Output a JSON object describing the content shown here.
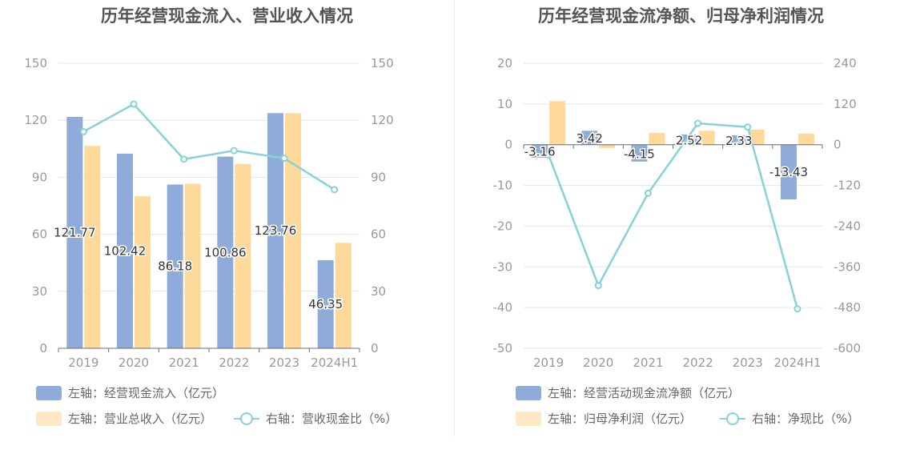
{
  "chart_data": [
    {
      "type": "bar",
      "title": "历年经营现金流入、营业收入情况",
      "categories": [
        "2019",
        "2020",
        "2021",
        "2022",
        "2023",
        "2024H1"
      ],
      "series": [
        {
          "name": "左轴：经营现金流入（亿元）",
          "axis": "left",
          "values": [
            121.77,
            102.42,
            86.18,
            100.86,
            123.76,
            46.35
          ],
          "labels": [
            "121.77",
            "102.42",
            "86.18",
            "100.86",
            "123.76",
            "46.35"
          ]
        },
        {
          "name": "左轴：营业总收入（亿元）",
          "axis": "left",
          "values": [
            106.5,
            80,
            86.6,
            97,
            123.7,
            55.5
          ]
        },
        {
          "name": "右轴：营收现金比（%）",
          "axis": "right",
          "type": "line",
          "values": [
            114,
            128.5,
            99.5,
            104,
            100,
            83.5
          ]
        }
      ],
      "left_ylim": [
        0,
        150
      ],
      "right_ylim": [
        0,
        150
      ],
      "left_ticks": [
        "0",
        "30",
        "60",
        "90",
        "120",
        "150"
      ],
      "right_ticks": [
        "0",
        "30",
        "60",
        "90",
        "120",
        "150"
      ]
    },
    {
      "type": "bar",
      "title": "历年经营现金流净额、归母净利润情况",
      "categories": [
        "2019",
        "2020",
        "2021",
        "2022",
        "2023",
        "2024H1"
      ],
      "series": [
        {
          "name": "左轴：经营活动现金流净额（亿元）",
          "axis": "left",
          "values": [
            -3.16,
            3.42,
            -4.15,
            2.52,
            2.33,
            -13.43
          ],
          "labels": [
            "-3.16",
            "3.42",
            "-4.15",
            "2.52",
            "2.33",
            "-13.43"
          ]
        },
        {
          "name": "左轴：归母净利润（亿元）",
          "axis": "left",
          "values": [
            10.7,
            -0.8,
            2.9,
            3.4,
            3.7,
            2.7
          ]
        },
        {
          "name": "右轴：净现比（%）",
          "axis": "right",
          "type": "line",
          "values": [
            -30,
            -415,
            -143,
            63,
            52,
            -484
          ]
        }
      ],
      "left_ylim": [
        -50,
        20
      ],
      "right_ylim": [
        -600,
        240
      ],
      "left_ticks": [
        "-50",
        "-40",
        "-30",
        "-20",
        "-10",
        "0",
        "10",
        "20"
      ],
      "right_ticks": [
        "-600",
        "-480",
        "-360",
        "-240",
        "-120",
        "0",
        "120",
        "240"
      ]
    }
  ],
  "colors": {
    "bar1": "#8eabd9",
    "bar2": "#ffd99a",
    "bar2_legend": "#ffe8c4",
    "line": "#86d3d6",
    "text": "#999999",
    "title": "#555555",
    "grid": "#e3e6ef",
    "axis": "#6e7079"
  }
}
